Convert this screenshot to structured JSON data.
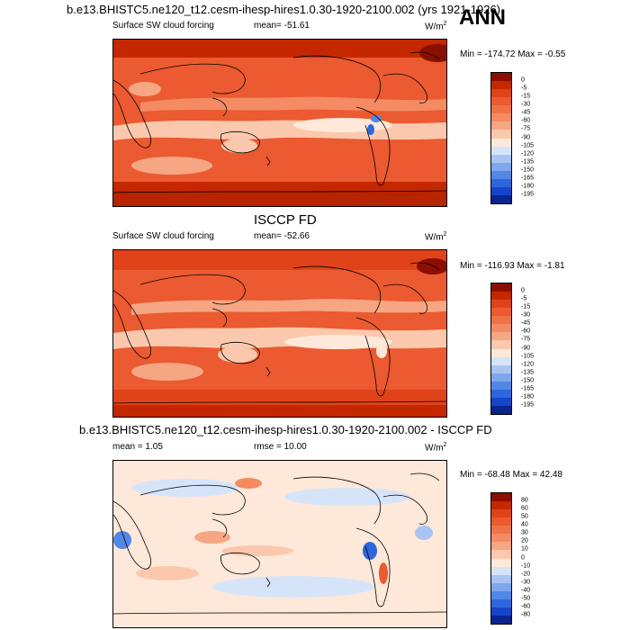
{
  "top_title": "b.e13.BHISTC5.ne120_t12.cesm-ihesp-hires1.0.30-1920-2100.002 (yrs 1921-1926)",
  "season_label": "ANN",
  "panels": [
    {
      "variable": "Surface SW cloud forcing",
      "mean_text": "mean= -51.61",
      "unit_base": "W/m",
      "unit_exp": "2",
      "minmax_text": "Min = -174.72 Max =  -0.55",
      "colorbar_ticks": [
        "0",
        "-5",
        "-15",
        "-30",
        "-45",
        "-60",
        "-75",
        "-90",
        "-105",
        "-120",
        "-135",
        "-150",
        "-165",
        "-180",
        "-195"
      ],
      "colors": [
        "#8b0f00",
        "#c52800",
        "#e0431a",
        "#eb5a30",
        "#ef7248",
        "#f48b63",
        "#f7a684",
        "#fbc8ae",
        "#fde8d9",
        "#d6e4fa",
        "#a9c4f3",
        "#7ea7ec",
        "#5287e6",
        "#2e66dd",
        "#1545c9",
        "#0a2490"
      ]
    },
    {
      "header": "ISCCP FD",
      "variable": "Surface SW cloud forcing",
      "mean_text": "mean= -52.66",
      "unit_base": "W/m",
      "unit_exp": "2",
      "minmax_text": "Min = -116.93 Max =  -1.81",
      "colorbar_ticks": [
        "0",
        "-5",
        "-15",
        "-30",
        "-45",
        "-60",
        "-75",
        "-90",
        "-105",
        "-120",
        "-135",
        "-150",
        "-165",
        "-180",
        "-195"
      ],
      "colors": [
        "#8b0f00",
        "#c52800",
        "#e0431a",
        "#eb5a30",
        "#ef7248",
        "#f48b63",
        "#f7a684",
        "#fbc8ae",
        "#fde8d9",
        "#d6e4fa",
        "#a9c4f3",
        "#7ea7ec",
        "#5287e6",
        "#2e66dd",
        "#1545c9",
        "#0a2490"
      ]
    },
    {
      "header": "b.e13.BHISTC5.ne120_t12.cesm-ihesp-hires1.0.30-1920-2100.002 - ISCCP FD",
      "mean_text": "mean =  1.05",
      "rmse_text": "rmse =  10.00",
      "unit_base": "W/m",
      "unit_exp": "2",
      "minmax_text": "Min = -68.48 Max =  42.48",
      "colorbar_ticks": [
        "80",
        "60",
        "50",
        "40",
        "30",
        "20",
        "10",
        "0",
        "-10",
        "-20",
        "-30",
        "-40",
        "-50",
        "-60",
        "-80"
      ],
      "colors": [
        "#8b0f00",
        "#c52800",
        "#e0431a",
        "#eb5a30",
        "#ef7248",
        "#f48b63",
        "#f7a684",
        "#fbc8ae",
        "#fde8d9",
        "#d6e4fa",
        "#a9c4f3",
        "#7ea7ec",
        "#5287e6",
        "#2e66dd",
        "#1545c9",
        "#0a2490"
      ]
    }
  ],
  "chart_data": [
    {
      "type": "heatmap",
      "title": "Surface SW cloud forcing",
      "subtitle": "mean= -51.61",
      "units": "W/m2",
      "min": -174.72,
      "max": -0.55,
      "mean": -51.61,
      "levels": [
        0,
        -5,
        -15,
        -30,
        -45,
        -60,
        -75,
        -90,
        -105,
        -120,
        -135,
        -150,
        -165,
        -180,
        -195
      ]
    },
    {
      "type": "heatmap",
      "title": "ISCCP FD",
      "subtitle": "Surface SW cloud forcing",
      "units": "W/m2",
      "min": -116.93,
      "max": -1.81,
      "mean": -52.66,
      "levels": [
        0,
        -5,
        -15,
        -30,
        -45,
        -60,
        -75,
        -90,
        -105,
        -120,
        -135,
        -150,
        -165,
        -180,
        -195
      ]
    },
    {
      "type": "heatmap",
      "title": "b.e13.BHISTC5.ne120_t12.cesm-ihesp-hires1.0.30-1920-2100.002 - ISCCP FD",
      "units": "W/m2",
      "min": -68.48,
      "max": 42.48,
      "mean": 1.05,
      "rmse": 10.0,
      "levels": [
        80,
        60,
        50,
        40,
        30,
        20,
        10,
        0,
        -10,
        -20,
        -30,
        -40,
        -50,
        -60,
        -80
      ]
    }
  ]
}
